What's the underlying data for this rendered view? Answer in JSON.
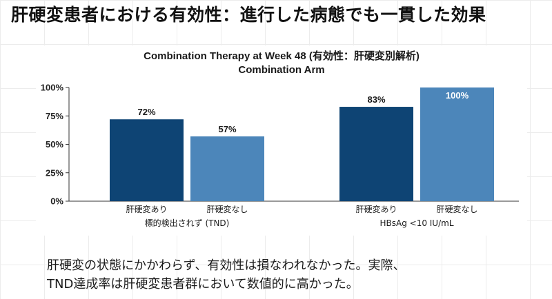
{
  "slide_title": "肝硬変患者における有効性：進行した病態でも一貫した効果",
  "chart_data": {
    "type": "bar",
    "title": "Combination Therapy at Week 48 (有効性：肝硬変別解析)",
    "subtitle": "Combination Arm",
    "ylim": [
      0,
      100
    ],
    "yticks": [
      "0%",
      "25%",
      "50%",
      "75%",
      "100%"
    ],
    "grid": false,
    "groups": [
      {
        "label": "標的検出されず (TND)",
        "bars": [
          {
            "label": "肝硬変あり",
            "value": 72,
            "value_label": "72%",
            "color": "#0e4474"
          },
          {
            "label": "肝硬変なし",
            "value": 57,
            "value_label": "57%",
            "color": "#4c86ba"
          }
        ]
      },
      {
        "label": "HBsAg <10 IU/mL",
        "bars": [
          {
            "label": "肝硬変あり",
            "value": 83,
            "value_label": "83%",
            "color": "#0e4474"
          },
          {
            "label": "肝硬変なし",
            "value": 100,
            "value_label": "100%",
            "color": "#4c86ba"
          }
        ]
      }
    ]
  },
  "caption": {
    "line1": "肝硬変の状態にかかわらず、有効性は損なわれなかった。実際、",
    "line2": "TND達成率は肝硬変患者群において数値的に高かった。"
  }
}
